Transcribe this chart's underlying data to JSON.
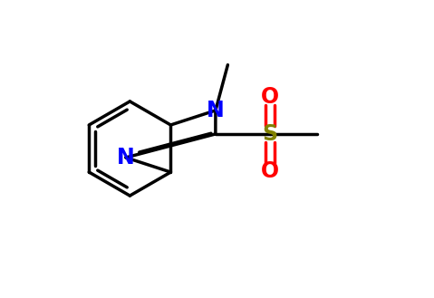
{
  "background_color": "#ffffff",
  "bond_color": "#000000",
  "nitrogen_color": "#0000ff",
  "oxygen_color": "#ff0000",
  "sulfur_color": "#808000",
  "line_width": 2.5,
  "font_size_atoms": 17,
  "figsize": [
    4.79,
    3.29
  ],
  "dpi": 100,
  "xlim": [
    0,
    9.58
  ],
  "ylim": [
    0,
    6.58
  ]
}
